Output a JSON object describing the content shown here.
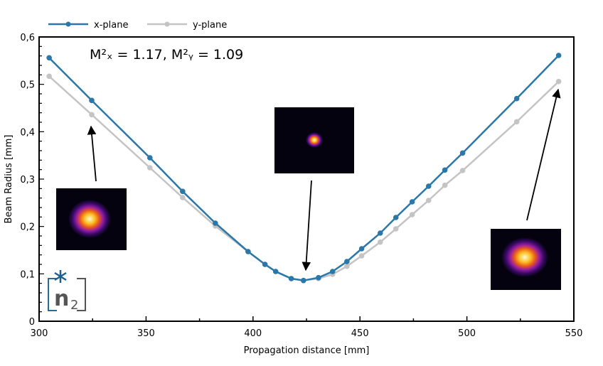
{
  "chart_data": {
    "type": "line",
    "title": "",
    "xlabel": "Propagation distance [mm]",
    "ylabel": "Beam Radius [mm]",
    "xlim": [
      300,
      550
    ],
    "ylim": [
      0,
      0.6
    ],
    "xticks": [
      "300",
      "350",
      "400",
      "450",
      "500",
      "550"
    ],
    "yticks": [
      "0",
      "0,1",
      "0,2",
      "0,3",
      "0,4",
      "0,5",
      "0,6"
    ],
    "legend_placement": "top-left-outside",
    "annotation": {
      "m2x_label": "M²ₓ = 1.17, M²ᵧ = 1.09",
      "m2x": 1.17,
      "m2y": 1.09
    },
    "x": [
      304.7,
      324.6,
      351.8,
      367.1,
      382.4,
      397.7,
      405.6,
      410.6,
      417.9,
      423.6,
      430.6,
      437.2,
      443.9,
      450.8,
      459.5,
      466.8,
      474.4,
      482.1,
      489.7,
      498.0,
      523.3,
      542.9
    ],
    "series": [
      {
        "name": "x-plane",
        "color": "#2a77a9",
        "values": [
          0.556,
          0.466,
          0.345,
          0.274,
          0.207,
          0.147,
          0.12,
          0.105,
          0.09,
          0.086,
          0.092,
          0.105,
          0.126,
          0.153,
          0.186,
          0.219,
          0.252,
          0.285,
          0.319,
          0.355,
          0.47,
          0.561
        ]
      },
      {
        "name": "y-plane",
        "color": "#c4c4c4",
        "values": [
          0.517,
          0.436,
          0.324,
          0.261,
          0.201,
          0.147,
          0.12,
          0.105,
          0.09,
          0.086,
          0.09,
          0.099,
          0.116,
          0.138,
          0.167,
          0.195,
          0.225,
          0.255,
          0.287,
          0.318,
          0.421,
          0.506
        ]
      }
    ],
    "beam_images": [
      {
        "name": "beam-profile-near",
        "x": 324.6,
        "points_to": 0.436
      },
      {
        "name": "beam-profile-waist",
        "x": 423.6,
        "points_to": 0.086
      },
      {
        "name": "beam-profile-far",
        "x": 542.9,
        "points_to": 0.506
      }
    ]
  },
  "logo": {
    "text": "n2"
  }
}
